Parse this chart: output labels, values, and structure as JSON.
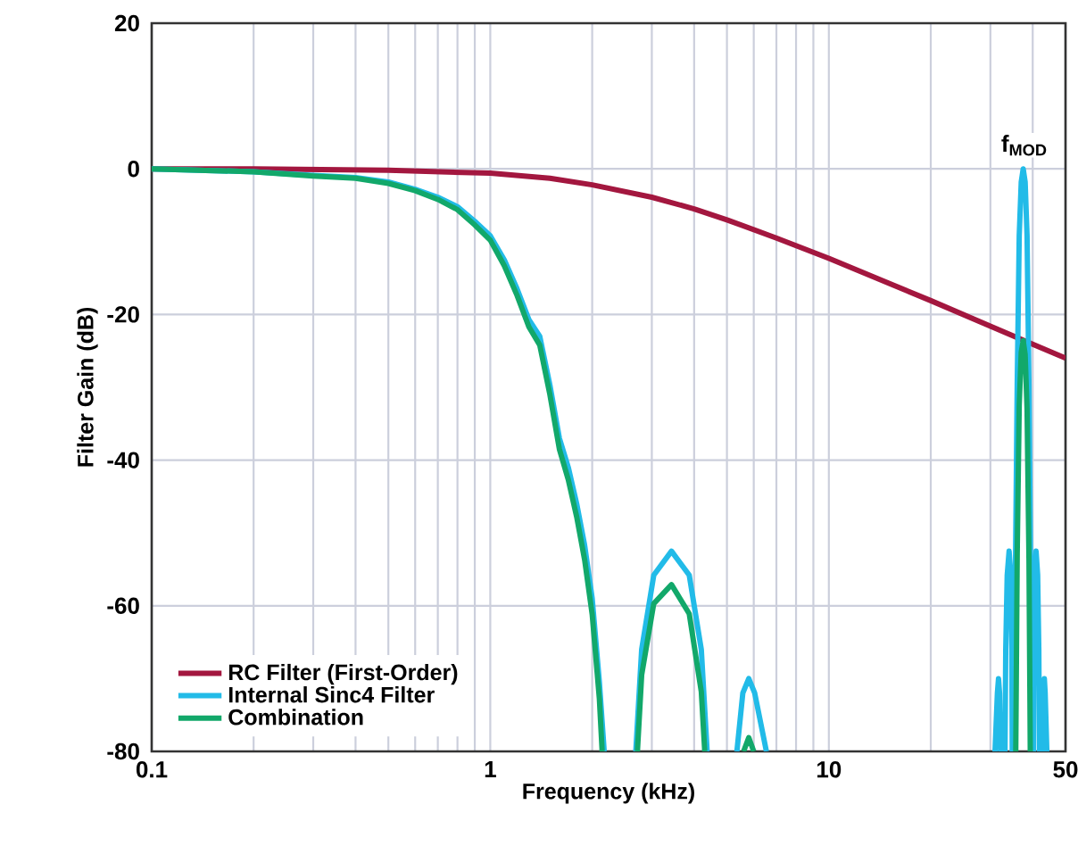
{
  "chart_data": {
    "type": "line",
    "xlabel": "Frequency (kHz)",
    "ylabel": "Filter Gain (dB)",
    "log": "x",
    "grid": true,
    "legend": "bottom left",
    "line_style": "solid",
    "marker": "none",
    "xlim": [
      0.1,
      50
    ],
    "xticks": [
      0.1,
      1,
      10,
      50
    ],
    "ylim": [
      -80,
      20
    ],
    "yticks": [
      -80,
      -60,
      -40,
      -20,
      0,
      20
    ],
    "annotations": [
      "f$_{MOD}$"
    ],
    "series": [
      {
        "name": "RC Filter (First-Order)",
        "color": "#a3173f",
        "x": [
          0.1,
          0.2,
          0.5,
          1,
          1.5,
          2,
          3,
          4,
          5,
          7,
          10,
          15,
          20,
          30,
          40,
          50
        ],
        "values": [
          0,
          0,
          -0.2,
          -0.6,
          -1.3,
          -2.2,
          -3.9,
          -5.5,
          -7,
          -9.5,
          -12.3,
          -15.7,
          -18.1,
          -21.6,
          -24.1,
          -26
        ]
      },
      {
        "name": "Internal Sinc4 Filter",
        "color": "#22bbe8",
        "x": [
          0.1,
          0.2,
          0.3,
          0.4,
          0.5,
          0.6,
          0.7,
          0.8,
          0.9,
          1.0,
          1.1,
          1.2,
          1.3,
          1.4,
          1.5,
          1.6,
          1.7,
          1.8,
          1.9,
          2.0,
          2.1,
          2.17,
          2.4,
          2.69,
          2.8,
          3.04,
          3.43,
          3.87,
          4.2,
          4.37,
          4.8,
          5.35,
          5.57,
          5.8,
          6.04,
          6.54,
          20,
          30.96,
          31.46,
          31.7,
          31.93,
          32.15,
          33.13,
          33.3,
          33.63,
          34.07,
          34.46,
          34.7,
          34.81,
          35.35,
          35.5,
          36.0,
          36.5,
          37.0,
          37.5,
          38.0,
          38.5,
          39.0,
          39.5,
          39.65,
          40.19,
          40.3,
          40.54,
          40.93,
          41.37,
          41.7,
          41.87,
          42.85,
          43.07,
          43.3,
          43.54,
          44.04
        ],
        "values": [
          0,
          -0.4,
          -0.9,
          -1.2,
          -1.8,
          -2.8,
          -3.9,
          -5.2,
          -7.2,
          -9.2,
          -12.5,
          -16.5,
          -20.7,
          -23,
          -29.7,
          -37,
          -41,
          -46,
          -51.7,
          -59,
          -70.5,
          -80,
          null,
          -80,
          -66,
          -55.8,
          -52.5,
          -55.8,
          -66,
          -80,
          null,
          -80,
          -72,
          -70,
          -72,
          -80,
          null,
          -80,
          -72,
          -70,
          -72,
          -80,
          -80,
          -66,
          -55.8,
          -52.5,
          -55.8,
          -66,
          -80,
          -80,
          -59,
          -29.7,
          -9.2,
          -1.8,
          0,
          -1.8,
          -9.2,
          -29.7,
          -59,
          -80,
          -80,
          -66,
          -55.8,
          -52.5,
          -55.8,
          -66,
          -80,
          -80,
          -72,
          -70,
          -72,
          -80
        ]
      },
      {
        "name": "Combination",
        "color": "#12a86a",
        "x": [
          0.1,
          0.2,
          0.3,
          0.4,
          0.5,
          0.6,
          0.7,
          0.8,
          0.9,
          1.0,
          1.1,
          1.2,
          1.3,
          1.4,
          1.5,
          1.6,
          1.7,
          1.8,
          1.9,
          2.0,
          2.1,
          2.14,
          2.4,
          2.72,
          2.8,
          3.04,
          3.43,
          3.87,
          4.2,
          4.3,
          5.0,
          5.6,
          5.8,
          6.0,
          20,
          35.65,
          36.0,
          36.5,
          37.0,
          37.5,
          38.0,
          38.5,
          39.0,
          39.35
        ],
        "values": [
          0,
          -0.4,
          -1,
          -1.3,
          -2,
          -3,
          -4.2,
          -5.6,
          -7.7,
          -9.8,
          -13.3,
          -17.4,
          -21.7,
          -24.2,
          -31,
          -38.5,
          -42.7,
          -47.8,
          -53.7,
          -61.2,
          -72.8,
          -80,
          null,
          -80,
          -69.5,
          -59.7,
          -57.1,
          -61.1,
          -71.8,
          -80,
          null,
          -80,
          -78.1,
          -80,
          null,
          -80,
          -52.9,
          -32.5,
          -25.2,
          -23.6,
          -25.5,
          -33.0,
          -53.6,
          -80
        ]
      }
    ]
  }
}
